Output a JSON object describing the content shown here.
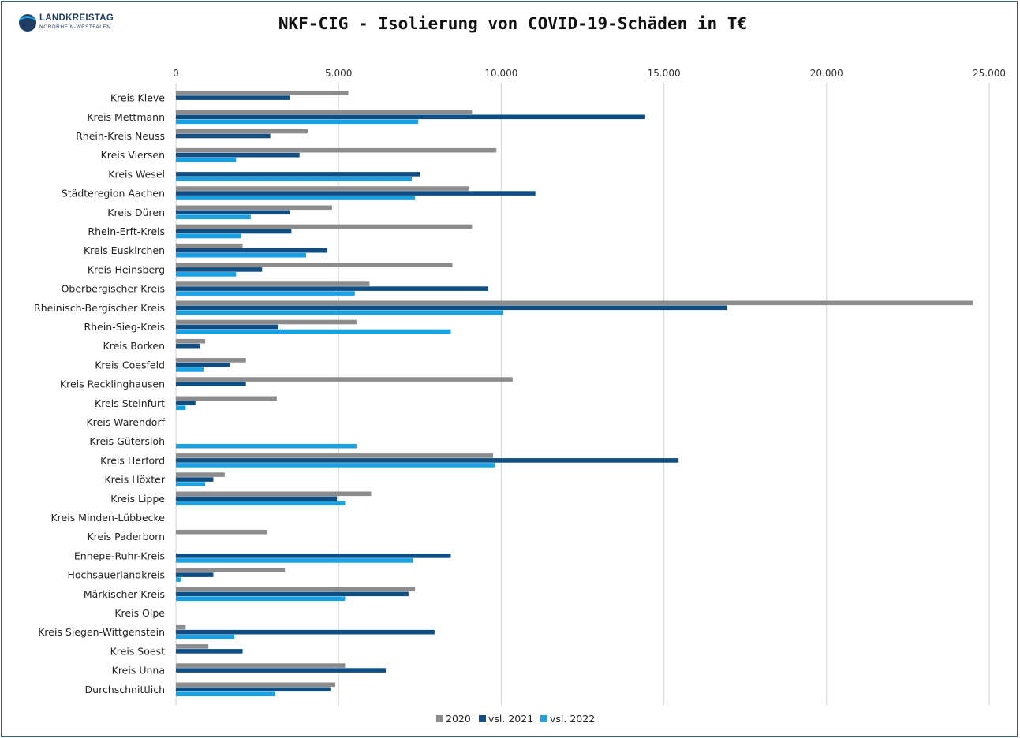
{
  "logo": {
    "name": "LANDKREISTAG",
    "subtitle": "NORDRHEIN-WESTFALEN"
  },
  "colors": {
    "s2020": "#8c8c8c",
    "s2021": "#0f4e85",
    "s2022": "#17a2e3",
    "grid": "#d9d9d9",
    "frame": "#2f5f86"
  },
  "chart_data": {
    "type": "bar",
    "orientation": "horizontal",
    "title": "NKF-CIG - Isolierung von COVID-19-Schäden in T€",
    "xlim": [
      0,
      25000
    ],
    "xticks": [
      0,
      5000,
      10000,
      15000,
      20000,
      25000
    ],
    "xtick_labels": [
      "0",
      "5.000",
      "10.000",
      "15.000",
      "20.000",
      "25.000"
    ],
    "grid": true,
    "legend_position": "bottom",
    "categories": [
      "Kreis Kleve",
      "Kreis Mettmann",
      "Rhein-Kreis Neuss",
      "Kreis Viersen",
      "Kreis Wesel",
      "Städteregion Aachen",
      "Kreis Düren",
      "Rhein-Erft-Kreis",
      "Kreis Euskirchen",
      "Kreis Heinsberg",
      "Oberbergischer Kreis",
      "Rheinisch-Bergischer Kreis",
      "Rhein-Sieg-Kreis",
      "Kreis Borken",
      "Kreis Coesfeld",
      "Kreis Recklinghausen",
      "Kreis Steinfurt",
      "Kreis Warendorf",
      "Kreis Gütersloh",
      "Kreis Herford",
      "Kreis Höxter",
      "Kreis Lippe",
      "Kreis Minden-Lübbecke",
      "Kreis Paderborn",
      "Ennepe-Ruhr-Kreis",
      "Hochsauerlandkreis",
      "Märkischer Kreis",
      "Kreis Olpe",
      "Kreis Siegen-Wittgenstein",
      "Kreis Soest",
      "Kreis Unna",
      "Durchschnittlich"
    ],
    "series": [
      {
        "name": "2020",
        "values": [
          5300,
          9100,
          4050,
          9850,
          0,
          9000,
          4800,
          9100,
          2050,
          8500,
          5950,
          24500,
          5550,
          900,
          2150,
          10350,
          3100,
          0,
          0,
          9750,
          1500,
          6000,
          0,
          2800,
          0,
          3350,
          7350,
          0,
          300,
          1000,
          5200,
          4900
        ]
      },
      {
        "name": "vsl. 2021",
        "values": [
          3500,
          14400,
          2900,
          3800,
          7500,
          11050,
          3500,
          3550,
          4650,
          2650,
          9600,
          16950,
          3150,
          750,
          1650,
          2150,
          600,
          0,
          0,
          15450,
          1150,
          4950,
          0,
          0,
          8450,
          1150,
          7150,
          0,
          7950,
          2050,
          6450,
          4750
        ]
      },
      {
        "name": "vsl. 2022",
        "values": [
          0,
          7450,
          0,
          1850,
          7250,
          7350,
          2300,
          2000,
          4000,
          1850,
          5500,
          10050,
          8450,
          0,
          850,
          0,
          300,
          0,
          5550,
          9800,
          900,
          5200,
          0,
          0,
          7300,
          150,
          5200,
          0,
          1800,
          0,
          0,
          3050
        ]
      }
    ]
  }
}
